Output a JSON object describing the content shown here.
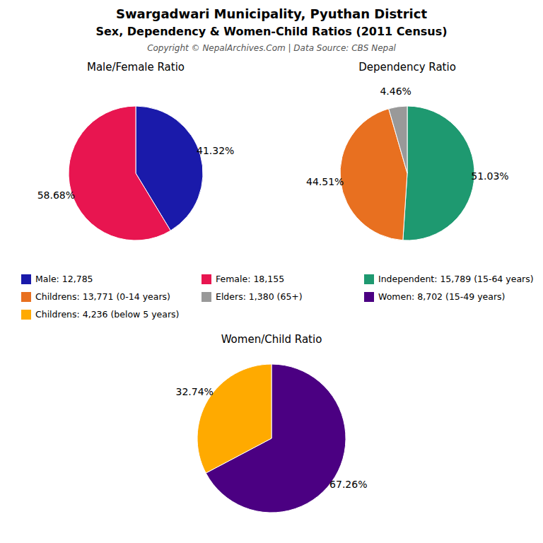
{
  "title": "Swargadwari Municipality, Pyuthan District",
  "subtitle": "Sex, Dependency & Women-Child Ratios (2011 Census)",
  "annotations": [
    "Copyright © NepalArchives.Com | Data Source: CBS Nepal"
  ],
  "chart_data": [
    {
      "type": "pie",
      "title": "Male/Female Ratio",
      "categories": [
        "Male: 12,785",
        "Female: 18,155"
      ],
      "values": [
        41.32,
        58.68
      ],
      "value_labels": [
        "41.32%",
        "58.68%"
      ],
      "colors": [
        "#1a1aaa",
        "#e81550"
      ],
      "data_labels": true,
      "legend": "bottom"
    },
    {
      "type": "pie",
      "title": "Dependency Ratio",
      "categories": [
        "Independent: 15,789 (15-64 years)",
        "Childrens: 13,771 (0-14 years)",
        "Elders: 1,380 (65+)"
      ],
      "values": [
        51.03,
        44.51,
        4.46
      ],
      "value_labels": [
        "51.03%",
        "44.51%",
        "4.46%"
      ],
      "colors": [
        "#1e9970",
        "#e87020",
        "#999999"
      ],
      "data_labels": true,
      "legend": "bottom"
    },
    {
      "type": "pie",
      "title": "Women/Child Ratio",
      "categories": [
        "Women: 8,702 (15-49 years)",
        "Childrens: 4,236 (below 5 years)"
      ],
      "values": [
        67.26,
        32.74
      ],
      "value_labels": [
        "67.26%",
        "32.74%"
      ],
      "colors": [
        "#4b0082",
        "#ffaa00"
      ],
      "data_labels": true,
      "legend": "top"
    }
  ]
}
